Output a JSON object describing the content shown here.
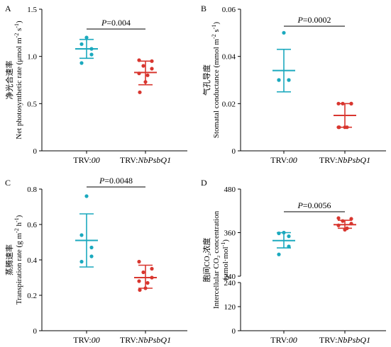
{
  "colors": {
    "teal": "#1BA9BE",
    "red": "#D8362F",
    "axis": "#000000"
  },
  "chart_data": [
    {
      "type": "scatter",
      "letter": "A",
      "ylabel": "净光合速率 Net photosynthetic rate (μmol m⁻² s⁻¹)",
      "ylabel_cn": "净光合速率",
      "ylabel_en": "Net photosynthetic rate (μmol m",
      "ylabel_sup1": "-2",
      "ylabel_mid": " s",
      "ylabel_sup2": "-1",
      "ylabel_end": ")",
      "ylim": [
        0,
        1.5
      ],
      "yticks": [
        0,
        0.5,
        1.0,
        1.5
      ],
      "yticklabels": [
        "0",
        "0.5",
        "1.0",
        "1.5"
      ],
      "categories": [
        "TRV:",
        "TRV:"
      ],
      "category_italic": [
        "00",
        "NbPsbQ1"
      ],
      "pvalue_prefix": "P",
      "pvalue_rest": "=0.004",
      "series": [
        {
          "color": "teal",
          "mean": 1.08,
          "sd": [
            0.98,
            1.18
          ],
          "points": [
            1.2,
            1.13,
            1.08,
            1.02,
            0.93
          ]
        },
        {
          "color": "red",
          "mean": 0.83,
          "sd": [
            0.7,
            0.95
          ],
          "points": [
            0.96,
            0.95,
            0.9,
            0.87,
            0.82,
            0.8,
            0.73,
            0.62
          ]
        }
      ]
    },
    {
      "type": "scatter",
      "letter": "B",
      "ylabel_cn": "气孔导度",
      "ylabel_en": "Stomatal conductance (mmol m",
      "ylabel_sup1": "-2",
      "ylabel_mid": " s",
      "ylabel_sup2": "-1",
      "ylabel_end": ")",
      "ylim": [
        0,
        0.06
      ],
      "yticks": [
        0,
        0.02,
        0.04,
        0.06
      ],
      "yticklabels": [
        "0",
        "0.02",
        "0.04",
        "0.06"
      ],
      "categories": [
        "TRV:",
        "TRV:"
      ],
      "category_italic": [
        "00",
        "NbPsbQ1"
      ],
      "pvalue_prefix": "P",
      "pvalue_rest": "=0.0002",
      "series": [
        {
          "color": "teal",
          "mean": 0.034,
          "sd": [
            0.025,
            0.043
          ],
          "points": [
            0.05,
            0.03,
            0.03,
            0.03,
            0.03
          ]
        },
        {
          "color": "red",
          "mean": 0.015,
          "sd": [
            0.01,
            0.02
          ],
          "points": [
            0.02,
            0.02,
            0.02,
            0.02,
            0.01,
            0.01,
            0.01,
            0.01
          ]
        }
      ]
    },
    {
      "type": "scatter",
      "letter": "C",
      "ylabel_cn": "蒸腾速率",
      "ylabel_en": "Transpiration rate (g m",
      "ylabel_sup1": "-2",
      "ylabel_mid": " h",
      "ylabel_sup2": "-1",
      "ylabel_end": ")",
      "ylim": [
        0,
        0.8
      ],
      "yticks": [
        0,
        0.2,
        0.4,
        0.6,
        0.8
      ],
      "yticklabels": [
        "0",
        "0.2",
        "0.4",
        "0.6",
        "0.8"
      ],
      "categories": [
        "TRV:",
        "TRV:"
      ],
      "category_italic": [
        "00",
        "NbPsbQ1"
      ],
      "pvalue_prefix": "P",
      "pvalue_rest": "=0.0048",
      "series": [
        {
          "color": "teal",
          "mean": 0.51,
          "sd": [
            0.36,
            0.66
          ],
          "points": [
            0.76,
            0.54,
            0.47,
            0.42,
            0.39
          ]
        },
        {
          "color": "red",
          "mean": 0.3,
          "sd": [
            0.24,
            0.37
          ],
          "points": [
            0.39,
            0.35,
            0.33,
            0.3,
            0.28,
            0.27,
            0.24,
            0.23
          ]
        }
      ]
    },
    {
      "type": "scatter",
      "letter": "D",
      "ylabel_cn": "胞间CO₂浓度",
      "ylabel_en": "Intercellular CO₂ concentration",
      "ylabel_en2": "(μmol·mol",
      "ylabel_sup1": "-1",
      "ylabel_end": ")",
      "broken_axis": true,
      "lower_ylim": [
        0,
        240
      ],
      "lower_yticks": [
        0,
        120,
        240
      ],
      "lower_yticklabels": [
        "0",
        "120",
        "240"
      ],
      "upper_ylim": [
        240,
        480
      ],
      "upper_yticks": [
        240,
        360,
        480
      ],
      "upper_yticklabels": [
        "240",
        "360",
        "480"
      ],
      "categories": [
        "TRV:",
        "TRV:"
      ],
      "category_italic": [
        "00",
        "NbPsbQ1"
      ],
      "pvalue_prefix": "P",
      "pvalue_rest": "=0.0056",
      "series": [
        {
          "color": "teal",
          "mean": 338,
          "sd": [
            318,
            360
          ],
          "points": [
            360,
            358,
            350,
            322,
            300
          ]
        },
        {
          "color": "red",
          "mean": 382,
          "sd": [
            372,
            394
          ],
          "points": [
            400,
            398,
            392,
            385,
            380,
            372,
            368
          ]
        }
      ]
    }
  ]
}
